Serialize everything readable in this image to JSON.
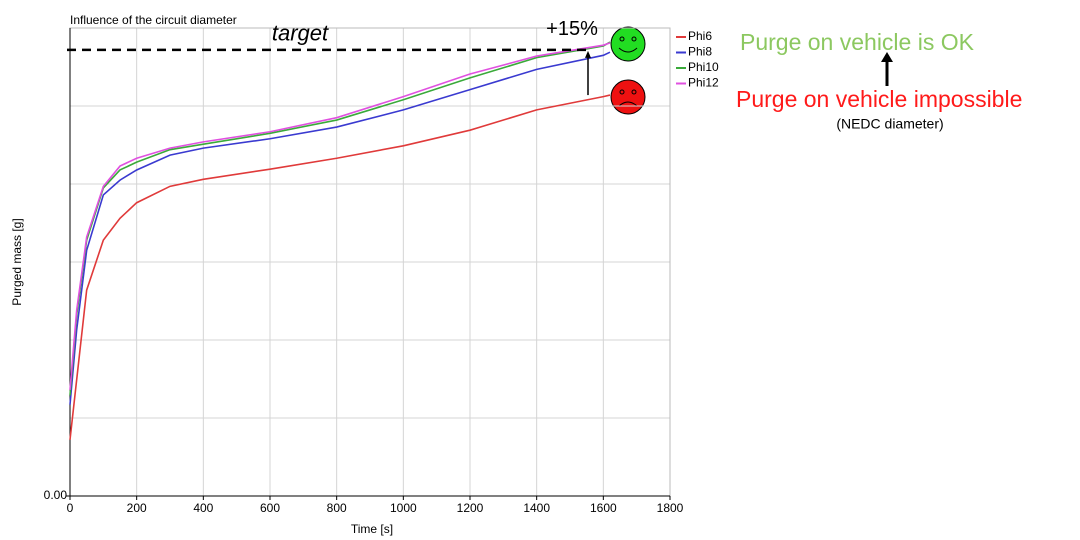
{
  "chart_data": {
    "type": "line",
    "title": "Influence of the circuit diameter",
    "xlabel": "Time [s]",
    "ylabel": "Purged mass [g]",
    "x": [
      0,
      20,
      50,
      100,
      150,
      200,
      300,
      400,
      600,
      800,
      1000,
      1200,
      1400,
      1600,
      1620
    ],
    "series": [
      {
        "name": "Phi6",
        "color": "#e03a3a",
        "values": [
          0.72,
          1.49,
          2.64,
          3.28,
          3.56,
          3.76,
          3.97,
          4.06,
          4.19,
          4.33,
          4.49,
          4.69,
          4.95,
          5.12,
          5.14
        ]
      },
      {
        "name": "Phi8",
        "color": "#3a3ad0",
        "values": [
          1.17,
          2.13,
          3.15,
          3.86,
          4.05,
          4.18,
          4.37,
          4.46,
          4.58,
          4.73,
          4.95,
          5.21,
          5.47,
          5.65,
          5.69
        ]
      },
      {
        "name": "Phi10",
        "color": "#3aaa3a",
        "values": [
          1.29,
          2.32,
          3.28,
          3.95,
          4.18,
          4.28,
          4.44,
          4.51,
          4.65,
          4.82,
          5.08,
          5.36,
          5.62,
          5.77,
          5.82
        ]
      },
      {
        "name": "Phi12",
        "color": "#e050e0",
        "values": [
          1.36,
          2.38,
          3.32,
          3.97,
          4.23,
          4.33,
          4.46,
          4.54,
          4.67,
          4.85,
          5.12,
          5.41,
          5.64,
          5.78,
          5.81
        ]
      }
    ],
    "xlim": [
      0,
      1800
    ],
    "xticks": [
      0,
      200,
      400,
      600,
      800,
      1000,
      1200,
      1400,
      1600,
      1800
    ],
    "ylim": [
      0,
      6
    ],
    "yticks": [
      {
        "value": 0,
        "label": "0.00"
      }
    ],
    "ygrid": [
      1,
      2,
      3,
      4,
      5,
      6
    ],
    "grid": true,
    "legend": "right",
    "target_value": 5.72,
    "target_label": "target",
    "gain_label": "+15%",
    "ok_label": "Purge on vehicle is OK",
    "ko_label": "Purge on vehicle impossible",
    "ko_note": "(NEDC diameter)"
  }
}
